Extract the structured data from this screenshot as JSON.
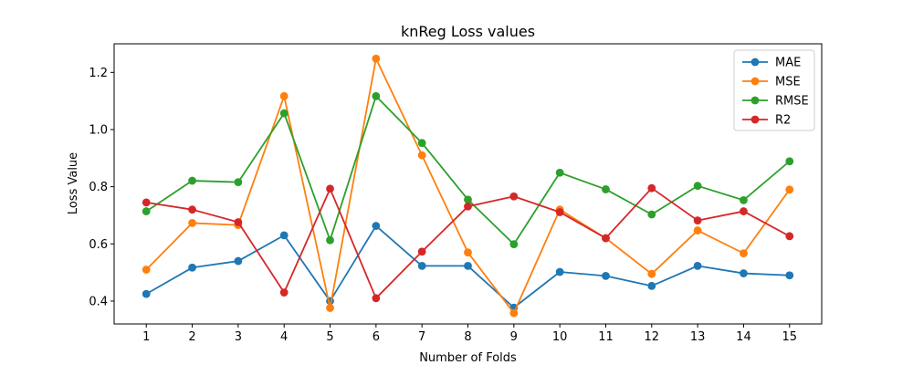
{
  "chart_data": {
    "type": "line",
    "title": "knReg Loss values",
    "xlabel": "Number of Folds",
    "ylabel": "Loss Value",
    "x": [
      1,
      2,
      3,
      4,
      5,
      6,
      7,
      8,
      9,
      10,
      11,
      12,
      13,
      14,
      15
    ],
    "xlim": [
      0.3,
      15.7
    ],
    "ylim": [
      0.32,
      1.3
    ],
    "yticks": [
      0.4,
      0.6,
      0.8,
      1.0,
      1.2
    ],
    "ytick_labels": [
      "0.4",
      "0.6",
      "0.8",
      "1.0",
      "1.2"
    ],
    "grid": false,
    "legend_position": "top-right",
    "series": [
      {
        "name": "MAE",
        "color": "#1f77b4",
        "values": [
          0.425,
          0.517,
          0.54,
          0.63,
          0.4,
          0.663,
          0.523,
          0.523,
          0.377,
          0.502,
          0.488,
          0.453,
          0.523,
          0.497,
          0.49
        ]
      },
      {
        "name": "MSE",
        "color": "#ff7f0e",
        "values": [
          0.51,
          0.673,
          0.666,
          1.117,
          0.376,
          1.248,
          0.91,
          0.57,
          0.358,
          0.72,
          0.62,
          0.495,
          0.647,
          0.567,
          0.79
        ]
      },
      {
        "name": "RMSE",
        "color": "#2ca02c",
        "values": [
          0.714,
          0.821,
          0.816,
          1.057,
          0.613,
          1.117,
          0.953,
          0.755,
          0.599,
          0.849,
          0.791,
          0.703,
          0.803,
          0.753,
          0.889
        ]
      },
      {
        "name": "R2",
        "color": "#d62728",
        "values": [
          0.745,
          0.72,
          0.676,
          0.43,
          0.793,
          0.41,
          0.573,
          0.731,
          0.766,
          0.711,
          0.62,
          0.795,
          0.682,
          0.714,
          0.627
        ]
      }
    ]
  }
}
